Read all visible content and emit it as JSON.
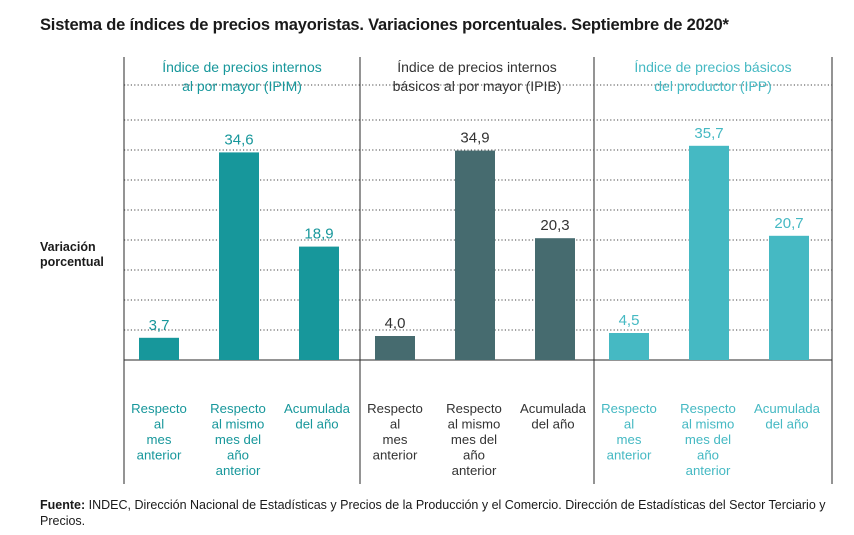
{
  "title": "Sistema de índices de precios mayoristas. Variaciones porcentuales. Septiembre de 2020*",
  "ylabel_lines": [
    "Variación",
    "porcentual"
  ],
  "source": {
    "label": "Fuente:",
    "text": "INDEC, Dirección Nacional de Estadísticas y Precios de la Producción y el Comercio. Dirección de Estadísticas del Sector Terciario y Precios."
  },
  "colors": {
    "ipim": "#17979b",
    "ipib": "#466b6f",
    "ipp": "#45b9c3",
    "ipib_text": "#333333"
  },
  "chart_data": {
    "type": "bar",
    "ylabel": "Variación porcentual",
    "ylim": [
      0,
      40
    ],
    "grid": true,
    "groups": [
      {
        "title_lines": [
          "Índice de precios internos",
          "al por mayor (IPIM)"
        ],
        "color_key": "ipim",
        "categories": [
          [
            "Respecto",
            "al",
            "mes",
            "anterior"
          ],
          [
            "Respecto",
            "al mismo",
            "mes del",
            "año",
            "anterior"
          ],
          [
            "Acumulada",
            "del año"
          ]
        ],
        "values": [
          3.7,
          34.6,
          18.9
        ],
        "value_labels": [
          "3,7",
          "34,6",
          "18,9"
        ]
      },
      {
        "title_lines": [
          "Índice de precios internos",
          "básicos al por mayor (IPIB)"
        ],
        "color_key": "ipib",
        "categories": [
          [
            "Respecto",
            "al",
            "mes",
            "anterior"
          ],
          [
            "Respecto",
            "al mismo",
            "mes del",
            "año",
            "anterior"
          ],
          [
            "Acumulada",
            "del año"
          ]
        ],
        "values": [
          4.0,
          34.9,
          20.3
        ],
        "value_labels": [
          "4,0",
          "34,9",
          "20,3"
        ]
      },
      {
        "title_lines": [
          "Índice de precios básicos",
          "del productor (IPP)"
        ],
        "color_key": "ipp",
        "categories": [
          [
            "Respecto",
            "al",
            "mes",
            "anterior"
          ],
          [
            "Respecto",
            "al mismo",
            "mes del",
            "año",
            "anterior"
          ],
          [
            "Acumulada",
            "del año"
          ]
        ],
        "values": [
          4.5,
          35.7,
          20.7
        ],
        "value_labels": [
          "4,5",
          "35,7",
          "20,7"
        ]
      }
    ]
  }
}
